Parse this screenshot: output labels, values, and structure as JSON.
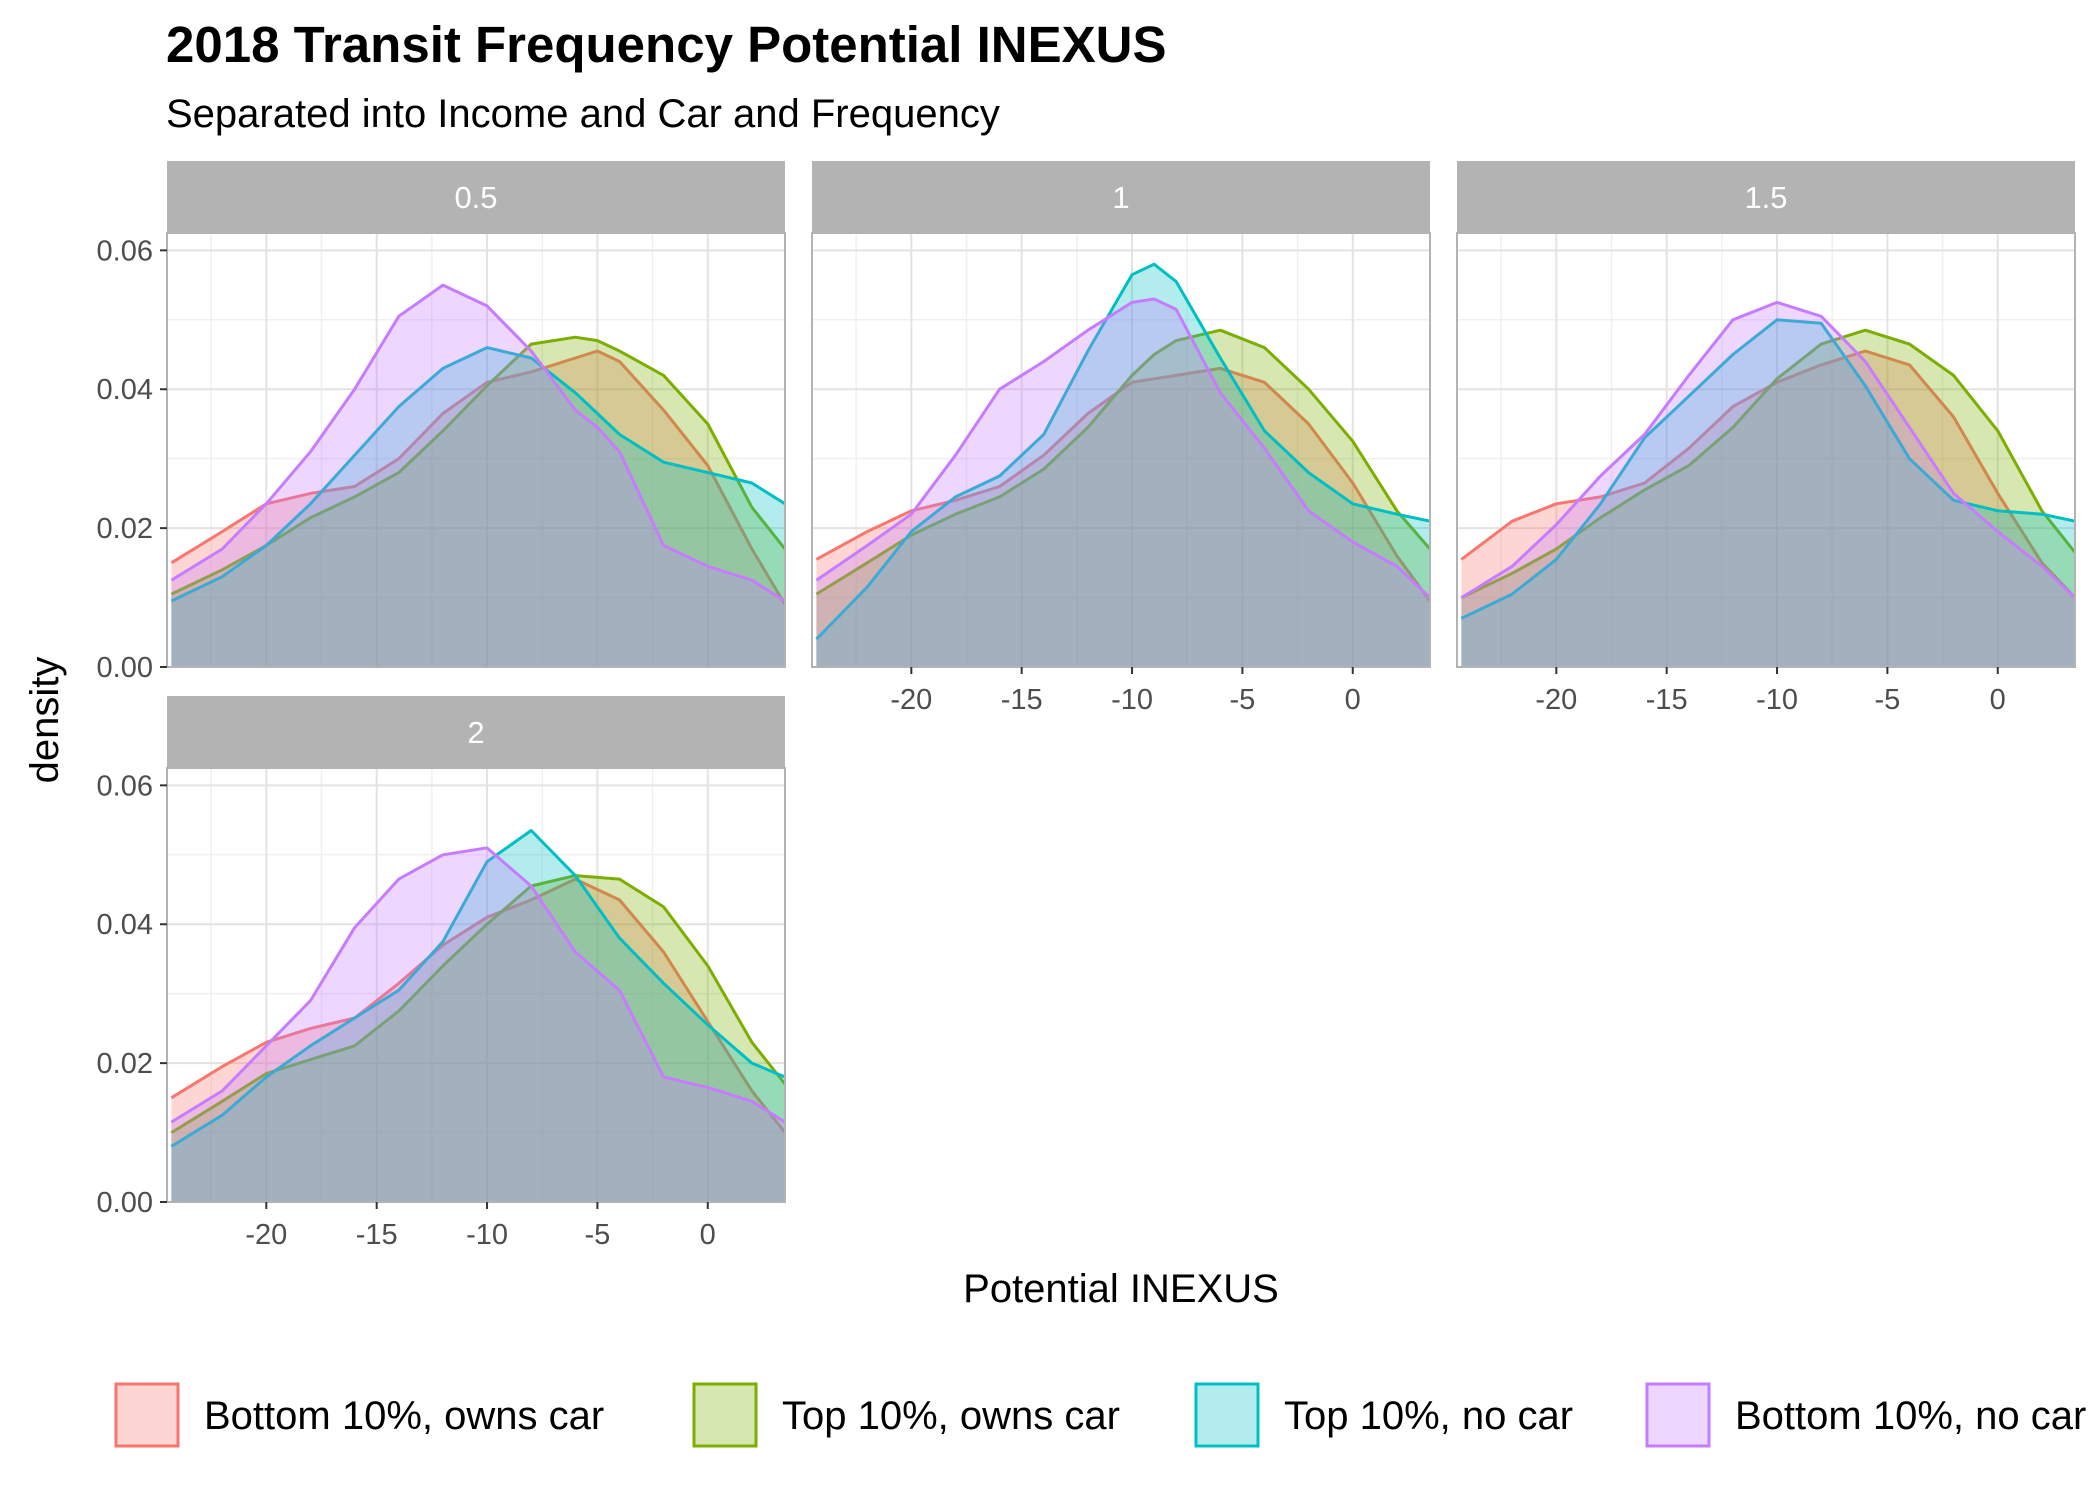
{
  "chart_data": {
    "type": "area",
    "subtype": "density",
    "title": "2018 Transit Frequency Potential INEXUS",
    "subtitle": "Separated into Income and Car and Frequency",
    "xlabel": "Potential INEXUS",
    "ylabel": "density",
    "xlim": [
      -24.5,
      3.5
    ],
    "ylim": [
      0,
      0.0625
    ],
    "x_ticks": [
      "-20",
      "-15",
      "-10",
      "-5",
      "0"
    ],
    "x_tick_values": [
      -20,
      -15,
      -10,
      -5,
      0
    ],
    "y_ticks": [
      "0.00",
      "0.02",
      "0.04",
      "0.06"
    ],
    "y_tick_values": [
      0,
      0.02,
      0.04,
      0.06
    ],
    "grid": true,
    "legend_position": "bottom",
    "series_styles": [
      {
        "name": "Bottom 10%, owns car",
        "color": "#F8766D"
      },
      {
        "name": "Top 10%, owns car",
        "color": "#7CAE00"
      },
      {
        "name": "Top 10%, no car",
        "color": "#00BFC4"
      },
      {
        "name": "Bottom 10%, no car",
        "color": "#C77CFF"
      }
    ],
    "panels": [
      {
        "facet": "0.5",
        "x": [
          -24.3,
          -22,
          -20,
          -18,
          -16,
          -14,
          -12,
          -10,
          -8,
          -6,
          -5,
          -4,
          -2,
          0,
          2,
          3.5
        ],
        "series": [
          {
            "name": "Bottom 10%, owns car",
            "values": [
              0.015,
              0.0195,
              0.0235,
              0.025,
              0.026,
              0.03,
              0.0365,
              0.041,
              0.0425,
              0.0445,
              0.0455,
              0.044,
              0.037,
              0.029,
              0.017,
              0.009
            ]
          },
          {
            "name": "Top 10%, owns car",
            "values": [
              0.0105,
              0.014,
              0.0175,
              0.0215,
              0.0245,
              0.028,
              0.034,
              0.0405,
              0.0465,
              0.0475,
              0.047,
              0.0455,
              0.042,
              0.035,
              0.023,
              0.017
            ]
          },
          {
            "name": "Top 10%, no car",
            "values": [
              0.0095,
              0.013,
              0.0175,
              0.0235,
              0.0305,
              0.0375,
              0.043,
              0.046,
              0.0445,
              0.0395,
              0.0365,
              0.0335,
              0.0295,
              0.028,
              0.0265,
              0.0235
            ]
          },
          {
            "name": "Bottom 10%, no car",
            "values": [
              0.0125,
              0.017,
              0.0235,
              0.031,
              0.04,
              0.0505,
              0.055,
              0.052,
              0.0455,
              0.037,
              0.0345,
              0.031,
              0.0175,
              0.0145,
              0.0125,
              0.0095
            ]
          }
        ]
      },
      {
        "facet": "1",
        "x": [
          -24.3,
          -22,
          -20,
          -18,
          -16,
          -14,
          -12,
          -10,
          -9,
          -8,
          -6,
          -4,
          -2,
          0,
          2,
          3.5
        ],
        "series": [
          {
            "name": "Bottom 10%, owns car",
            "values": [
              0.0155,
              0.0195,
              0.0225,
              0.024,
              0.026,
              0.0305,
              0.0365,
              0.041,
              0.0415,
              0.042,
              0.043,
              0.041,
              0.035,
              0.0265,
              0.016,
              0.0095
            ]
          },
          {
            "name": "Top 10%, owns car",
            "values": [
              0.0105,
              0.015,
              0.019,
              0.022,
              0.0245,
              0.0285,
              0.0345,
              0.042,
              0.045,
              0.047,
              0.0485,
              0.046,
              0.04,
              0.0325,
              0.0225,
              0.017
            ]
          },
          {
            "name": "Top 10%, no car",
            "values": [
              0.004,
              0.0115,
              0.0195,
              0.0245,
              0.0275,
              0.0335,
              0.0455,
              0.0565,
              0.058,
              0.0555,
              0.0445,
              0.034,
              0.028,
              0.0235,
              0.022,
              0.021
            ]
          },
          {
            "name": "Bottom 10%, no car",
            "values": [
              0.0125,
              0.0175,
              0.022,
              0.0305,
              0.04,
              0.044,
              0.0485,
              0.0525,
              0.053,
              0.0515,
              0.0395,
              0.0315,
              0.0225,
              0.018,
              0.0145,
              0.01
            ]
          }
        ]
      },
      {
        "facet": "1.5",
        "x": [
          -24.3,
          -22,
          -20,
          -18,
          -16,
          -14,
          -12,
          -10,
          -8,
          -6,
          -4,
          -2,
          0,
          2,
          3.5
        ],
        "series": [
          {
            "name": "Bottom 10%, owns car",
            "values": [
              0.0155,
              0.021,
              0.0235,
              0.0245,
              0.0265,
              0.0315,
              0.0375,
              0.041,
              0.0435,
              0.0455,
              0.0435,
              0.036,
              0.025,
              0.015,
              0.01
            ]
          },
          {
            "name": "Top 10%, owns car",
            "values": [
              0.01,
              0.0135,
              0.017,
              0.0215,
              0.0255,
              0.029,
              0.0345,
              0.0415,
              0.0465,
              0.0485,
              0.0465,
              0.042,
              0.034,
              0.0225,
              0.0165
            ]
          },
          {
            "name": "Top 10%, no car",
            "values": [
              0.007,
              0.0105,
              0.0155,
              0.0235,
              0.033,
              0.039,
              0.045,
              0.05,
              0.0495,
              0.0405,
              0.03,
              0.024,
              0.0225,
              0.022,
              0.021
            ]
          },
          {
            "name": "Bottom 10%, no car",
            "values": [
              0.01,
              0.0145,
              0.0205,
              0.0275,
              0.0335,
              0.042,
              0.05,
              0.0525,
              0.0505,
              0.044,
              0.0345,
              0.025,
              0.0195,
              0.0145,
              0.01
            ]
          }
        ]
      },
      {
        "facet": "2",
        "x": [
          -24.3,
          -22,
          -20,
          -18,
          -16,
          -14,
          -12,
          -10,
          -8,
          -6,
          -4,
          -2,
          0,
          2,
          3.5
        ],
        "series": [
          {
            "name": "Bottom 10%, owns car",
            "values": [
              0.015,
              0.0195,
              0.023,
              0.025,
              0.0265,
              0.0315,
              0.037,
              0.041,
              0.0435,
              0.0465,
              0.0435,
              0.036,
              0.026,
              0.016,
              0.01
            ]
          },
          {
            "name": "Top 10%, owns car",
            "values": [
              0.01,
              0.0145,
              0.0185,
              0.0205,
              0.0225,
              0.0275,
              0.034,
              0.04,
              0.0455,
              0.047,
              0.0465,
              0.0425,
              0.034,
              0.023,
              0.017
            ]
          },
          {
            "name": "Top 10%, no car",
            "values": [
              0.008,
              0.0125,
              0.018,
              0.0225,
              0.0265,
              0.0305,
              0.0375,
              0.049,
              0.0535,
              0.047,
              0.038,
              0.0315,
              0.0255,
              0.02,
              0.018
            ]
          },
          {
            "name": "Bottom 10%, no car",
            "values": [
              0.0115,
              0.016,
              0.0225,
              0.029,
              0.0395,
              0.0465,
              0.05,
              0.051,
              0.0455,
              0.036,
              0.0305,
              0.018,
              0.0165,
              0.0145,
              0.0115
            ]
          }
        ]
      }
    ]
  }
}
